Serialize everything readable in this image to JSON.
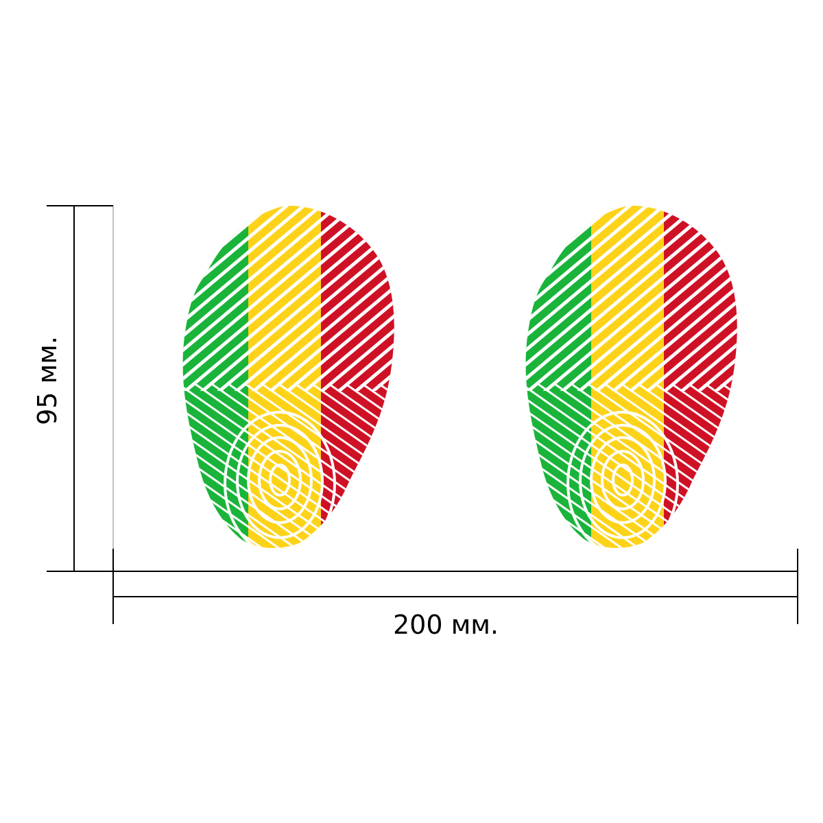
{
  "dimensions": {
    "width_label": "200 мм.",
    "height_label": "95 мм."
  },
  "stickers": [
    {
      "name": "fingerprint-flag-left"
    },
    {
      "name": "fingerprint-flag-right"
    }
  ],
  "colors": {
    "green": "#1ab43a",
    "yellow": "#fdd31a",
    "red": "#cf1126",
    "line": "#000000",
    "background": "#ffffff"
  }
}
